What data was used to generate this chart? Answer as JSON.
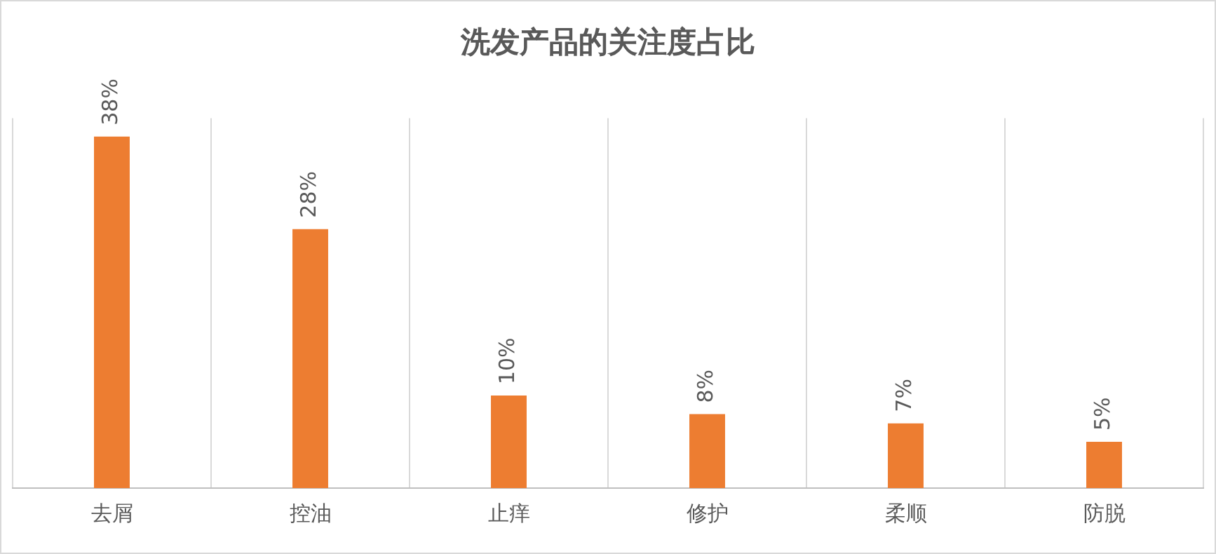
{
  "chart_data": {
    "type": "bar",
    "title": "洗发产品的关注度占比",
    "categories": [
      "去屑",
      "控油",
      "止痒",
      "修护",
      "柔顺",
      "防脱"
    ],
    "values": [
      38,
      28,
      10,
      8,
      7,
      5
    ],
    "value_labels": [
      "38%",
      "28%",
      "10%",
      "8%",
      "7%",
      "5%"
    ],
    "color": "#ed7d31",
    "grid": "x",
    "legend": false
  }
}
